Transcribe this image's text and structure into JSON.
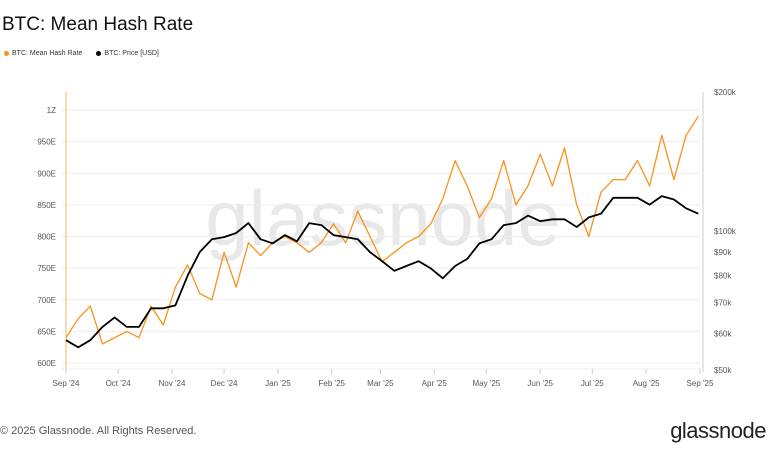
{
  "title": "BTC: Mean Hash Rate",
  "legend": [
    {
      "label": "BTC: Mean Hash Rate",
      "color": "#f7931a"
    },
    {
      "label": "BTC: Price [USD]",
      "color": "#000000"
    }
  ],
  "footer": {
    "copyright": "© 2025 Glassnode. All Rights Reserved.",
    "logo": "glassnode",
    "watermark": "glassnode"
  },
  "chart_data": {
    "type": "line",
    "x_tick_labels": [
      "Sep '24",
      "Oct '24",
      "Nov '24",
      "Dec '24",
      "Jan '25",
      "Feb '25",
      "Mar '25",
      "Apr '25",
      "May '25",
      "Jun '25",
      "Jul '25",
      "Aug '25",
      "Sep '25"
    ],
    "y_left": {
      "scale": "linear",
      "ticks": [
        "600E",
        "650E",
        "700E",
        "750E",
        "800E",
        "850E",
        "900E",
        "950E",
        "1Z"
      ],
      "tick_values": [
        600,
        650,
        700,
        750,
        800,
        850,
        900,
        950,
        1000
      ],
      "range": [
        590,
        1040
      ],
      "unit": "EH/s"
    },
    "y_right": {
      "scale": "log",
      "ticks": [
        "$50k",
        "$60k",
        "$70k",
        "$80k",
        "$90k",
        "$100k",
        "$200k"
      ],
      "tick_values": [
        50000,
        60000,
        70000,
        80000,
        90000,
        100000,
        200000
      ],
      "range": [
        50000,
        200000
      ]
    },
    "x_range": [
      "2024-09-01",
      "2025-09-01"
    ],
    "grid": true,
    "legend_position": "top-left",
    "dates": [
      "2024-09-01",
      "2024-09-08",
      "2024-09-15",
      "2024-09-22",
      "2024-09-29",
      "2024-10-06",
      "2024-10-13",
      "2024-10-20",
      "2024-10-27",
      "2024-11-03",
      "2024-11-10",
      "2024-11-17",
      "2024-11-24",
      "2024-12-01",
      "2024-12-08",
      "2024-12-15",
      "2024-12-22",
      "2024-12-29",
      "2025-01-05",
      "2025-01-12",
      "2025-01-19",
      "2025-01-26",
      "2025-02-02",
      "2025-02-09",
      "2025-02-16",
      "2025-02-23",
      "2025-03-02",
      "2025-03-09",
      "2025-03-16",
      "2025-03-23",
      "2025-03-30",
      "2025-04-06",
      "2025-04-13",
      "2025-04-20",
      "2025-04-27",
      "2025-05-04",
      "2025-05-11",
      "2025-05-18",
      "2025-05-25",
      "2025-06-01",
      "2025-06-08",
      "2025-06-15",
      "2025-06-22",
      "2025-06-29",
      "2025-07-06",
      "2025-07-13",
      "2025-07-20",
      "2025-07-27",
      "2025-08-03",
      "2025-08-10",
      "2025-08-17",
      "2025-08-24",
      "2025-08-31"
    ],
    "series": [
      {
        "name": "BTC: Mean Hash Rate",
        "axis": "left",
        "color": "#f7931a",
        "values": [
          640,
          670,
          690,
          630,
          640,
          650,
          640,
          690,
          660,
          720,
          755,
          710,
          700,
          775,
          720,
          790,
          770,
          790,
          800,
          790,
          775,
          790,
          820,
          790,
          840,
          800,
          760,
          775,
          790,
          800,
          820,
          860,
          920,
          880,
          830,
          860,
          920,
          850,
          880,
          930,
          880,
          940,
          850,
          800,
          870,
          890,
          890,
          920,
          880,
          960,
          890,
          960,
          990
        ]
      },
      {
        "name": "BTC: Price [USD]",
        "axis": "right",
        "color": "#000000",
        "values": [
          58000,
          56000,
          58000,
          62000,
          65000,
          62000,
          62000,
          68000,
          68000,
          69000,
          80000,
          90000,
          96000,
          97000,
          99000,
          104000,
          96000,
          94000,
          98000,
          95000,
          104000,
          103000,
          98000,
          97000,
          96000,
          90000,
          86000,
          82000,
          84000,
          86000,
          83000,
          79000,
          84000,
          87000,
          94000,
          96000,
          103000,
          104000,
          108000,
          105000,
          106000,
          106000,
          102000,
          107000,
          109000,
          118000,
          118000,
          118000,
          114000,
          119000,
          117000,
          112000,
          109000
        ]
      }
    ]
  }
}
